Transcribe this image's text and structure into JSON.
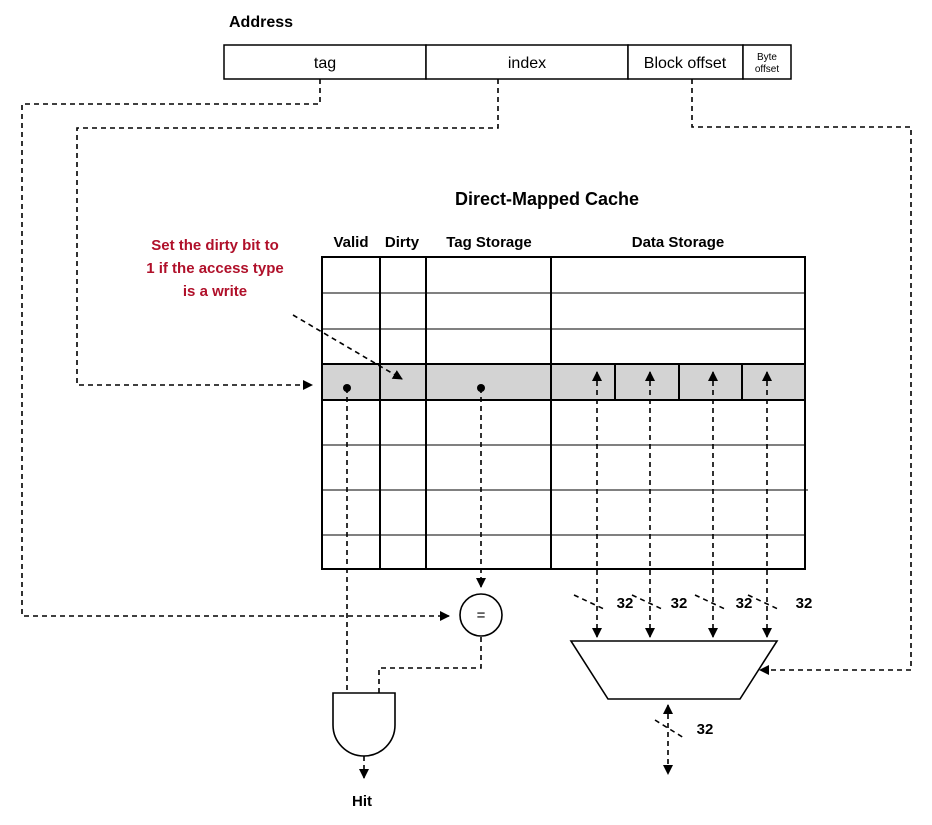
{
  "address": {
    "title": "Address",
    "fields": {
      "tag": "tag",
      "index": "index",
      "block_offset": "Block offset",
      "byte_offset_line1": "Byte",
      "byte_offset_line2": "offset"
    }
  },
  "cache": {
    "title": "Direct-Mapped Cache",
    "columns": {
      "valid": "Valid",
      "dirty": "Dirty",
      "tag_storage": "Tag Storage",
      "data_storage": "Data Storage"
    }
  },
  "annotation": {
    "lines": [
      "Set the dirty bit to",
      "1 if the access type",
      "is a write"
    ],
    "color": "#b0102a"
  },
  "comparator": {
    "symbol": "="
  },
  "bus_widths": [
    "32",
    "32",
    "32",
    "32"
  ],
  "output_width": "32",
  "hit_label": "Hit",
  "colors": {
    "selected_row": "#d3d3d3",
    "line": "#000000"
  }
}
